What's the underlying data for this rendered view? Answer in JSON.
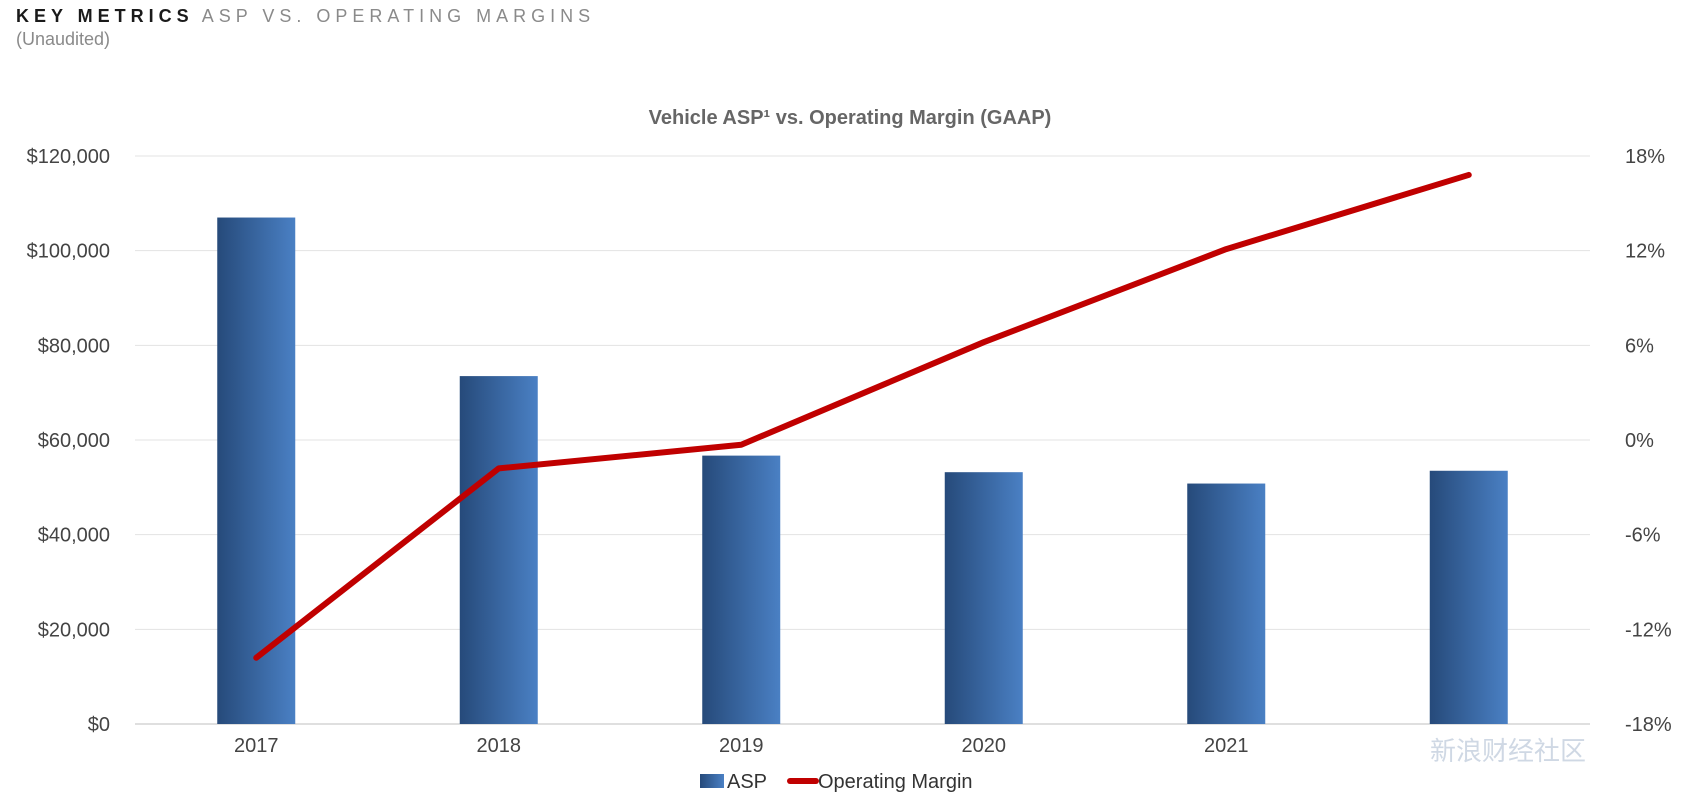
{
  "header": {
    "title_key": "KEY METRICS",
    "title_rest": "ASP VS. OPERATING MARGINS",
    "subtitle": "(Unaudited)"
  },
  "chart_data": {
    "type": "bar",
    "title": "Vehicle ASP¹ vs. Operating Margin (GAAP)",
    "categories": [
      "2017",
      "2018",
      "2019",
      "2020",
      "2021",
      ""
    ],
    "series": [
      {
        "name": "ASP",
        "type": "bar",
        "axis": "left",
        "values": [
          107000,
          73500,
          56700,
          53200,
          50800,
          53500
        ],
        "color": "#3a6aa8"
      },
      {
        "name": "Operating Margin",
        "type": "line",
        "axis": "right",
        "values": [
          -13.8,
          -1.8,
          -0.3,
          6.2,
          12.1,
          16.8
        ],
        "color": "#c00000"
      }
    ],
    "left_axis": {
      "min": 0,
      "max": 120000,
      "ticks": [
        "$0",
        "$20,000",
        "$40,000",
        "$60,000",
        "$80,000",
        "$100,000",
        "$120,000"
      ]
    },
    "right_axis": {
      "min": -18,
      "max": 18,
      "ticks": [
        "-18%",
        "-12%",
        "-6%",
        "0%",
        "6%",
        "12%",
        "18%"
      ]
    },
    "grid": true,
    "legend_position": "bottom"
  },
  "watermark": {
    "text": "新浪财经社区"
  }
}
